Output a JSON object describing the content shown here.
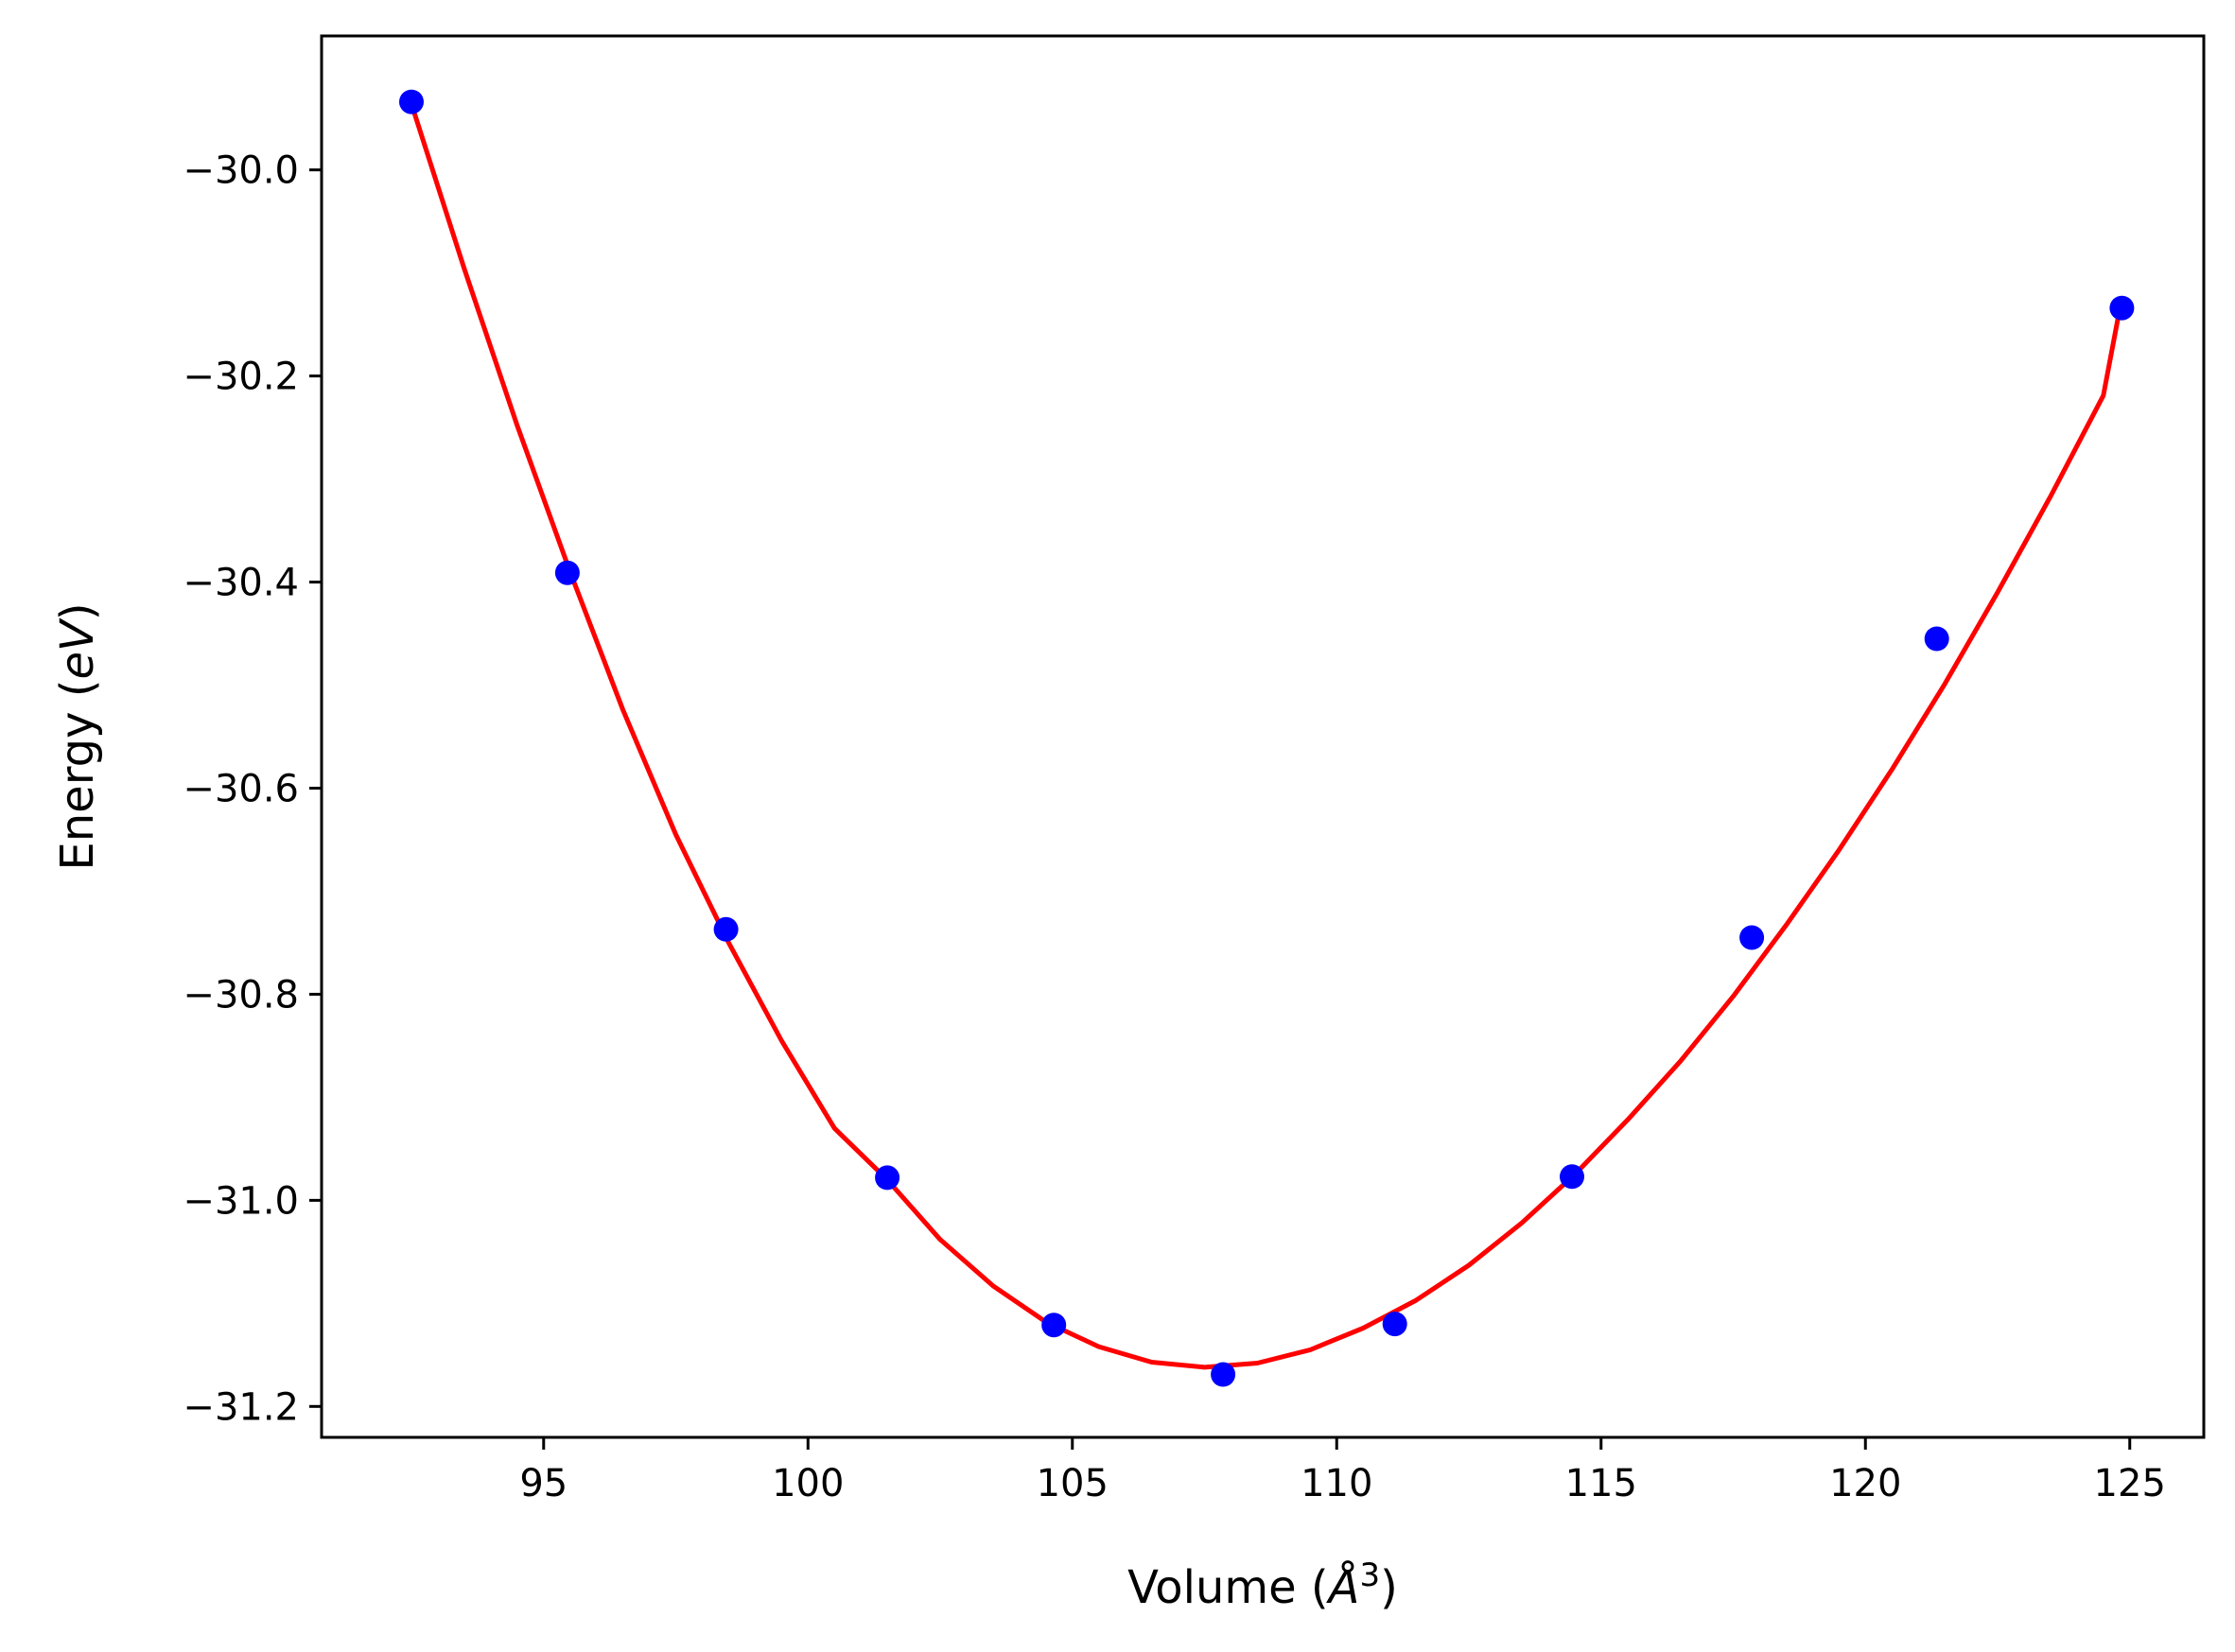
{
  "chart_data": {
    "type": "scatter",
    "title": "",
    "xlabel_parts": {
      "before": "Volume (",
      "unit": "Å",
      "exponent": "3",
      "after": ")"
    },
    "ylabel_parts": {
      "before": "Energy (",
      "unit": "eV",
      "after": ")"
    },
    "xlim": [
      90.8,
      126.4
    ],
    "ylim": [
      -31.23,
      -29.87
    ],
    "xticks": [
      95,
      100,
      105,
      110,
      115,
      120,
      125
    ],
    "yticks": [
      -30.0,
      -30.2,
      -30.4,
      -30.6,
      -30.8,
      -31.0,
      -31.2
    ],
    "xtick_labels": [
      "95",
      "100",
      "105",
      "110",
      "115",
      "120",
      "125"
    ],
    "ytick_labels": [
      "−30.0",
      "−30.2",
      "−30.4",
      "−30.6",
      "−30.8",
      "−31.0",
      "−31.2"
    ],
    "grid": false,
    "series": [
      {
        "kind": "points",
        "color": "#0000ff",
        "x": [
          92.5,
          95.45,
          98.45,
          101.5,
          104.65,
          107.85,
          111.1,
          114.45,
          117.85,
          121.35,
          124.85
        ],
        "y": [
          -29.934,
          -30.391,
          -30.737,
          -30.978,
          -31.121,
          -31.169,
          -31.12,
          -30.977,
          -30.745,
          -30.455,
          -30.134
        ]
      },
      {
        "kind": "fit-curve",
        "color": "#ff0000",
        "x": [
          92.5,
          93.5,
          94.5,
          95.5,
          96.5,
          97.5,
          98.5,
          99.5,
          100.5,
          101.5,
          102.5,
          103.5,
          104.5,
          105.5,
          106.5,
          107.5,
          108.5,
          109.5,
          110.5,
          111.5,
          112.5,
          113.5,
          114.5,
          115.5,
          116.5,
          117.5,
          118.5,
          119.5,
          120.5,
          121.5,
          122.5,
          123.5,
          124.5,
          124.85
        ],
        "y": [
          -29.936,
          -30.096,
          -30.248,
          -30.39,
          -30.524,
          -30.645,
          -30.75,
          -30.845,
          -30.93,
          -30.98,
          -31.038,
          -31.083,
          -31.118,
          -31.142,
          -31.157,
          -31.162,
          -31.158,
          -31.145,
          -31.124,
          -31.097,
          -31.063,
          -31.022,
          -30.975,
          -30.922,
          -30.865,
          -30.802,
          -30.733,
          -30.66,
          -30.582,
          -30.499,
          -30.41,
          -30.317,
          -30.219,
          -30.124
        ]
      }
    ],
    "colors": {
      "points": "#0000ff",
      "fit": "#ff0000",
      "axes": "#000000"
    }
  }
}
